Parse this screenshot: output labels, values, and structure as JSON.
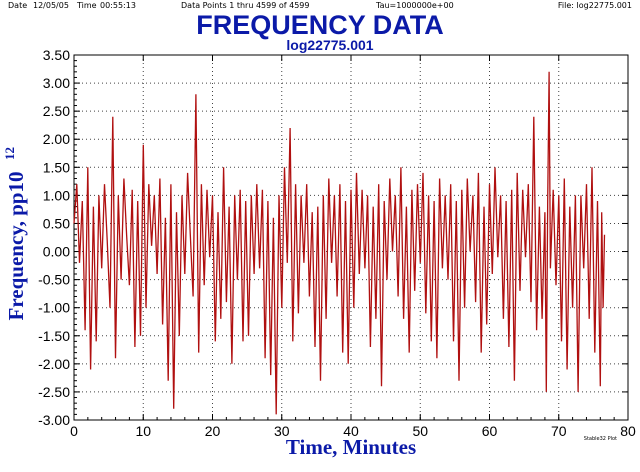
{
  "header": {
    "date_label": "Date",
    "date": "12/05/05",
    "time_label": "Time",
    "time": "00:55:13",
    "points": "Data Points 1 thru 4599 of 4599",
    "tau": "Tau=1000000e+00",
    "file": "File: log22775.001"
  },
  "credit": "Stable32 Plot",
  "chart_data": {
    "type": "line",
    "title": "FREQUENCY DATA",
    "subtitle": "log22775.001",
    "xlabel": "Time, Minutes",
    "ylabel_main": "Frequency,  pp10",
    "ylabel_sup": "12",
    "xlim": [
      0,
      80
    ],
    "ylim": [
      -3.0,
      3.5
    ],
    "x_ticks": [
      "0",
      "10",
      "20",
      "30",
      "40",
      "50",
      "60",
      "70",
      "80"
    ],
    "y_ticks": [
      "3.50",
      "3.00",
      "2.50",
      "2.00",
      "1.50",
      "1.00",
      "0.50",
      "0.00",
      "-0.50",
      "-1.00",
      "-1.50",
      "-2.00",
      "-2.50",
      "-3.00"
    ],
    "grid": true,
    "line_color": "#b01010",
    "series": [
      {
        "values": [
          [
            0.0,
            0.5
          ],
          [
            0.4,
            1.2
          ],
          [
            0.8,
            -0.2
          ],
          [
            1.2,
            0.9
          ],
          [
            1.6,
            -1.4
          ],
          [
            2.0,
            1.5
          ],
          [
            2.4,
            -2.1
          ],
          [
            2.8,
            0.8
          ],
          [
            3.2,
            -1.6
          ],
          [
            3.6,
            1.0
          ],
          [
            4.0,
            -0.3
          ],
          [
            4.4,
            1.2
          ],
          [
            4.8,
            0.2
          ],
          [
            5.2,
            -1.0
          ],
          [
            5.6,
            2.4
          ],
          [
            6.0,
            -1.9
          ],
          [
            6.4,
            1.0
          ],
          [
            6.8,
            -0.5
          ],
          [
            7.2,
            1.3
          ],
          [
            7.6,
            0.3
          ],
          [
            8.0,
            -0.6
          ],
          [
            8.4,
            1.1
          ],
          [
            8.8,
            -1.7
          ],
          [
            9.2,
            0.9
          ],
          [
            9.6,
            -1.5
          ],
          [
            10.0,
            1.9
          ],
          [
            10.4,
            -1.0
          ],
          [
            10.8,
            1.2
          ],
          [
            11.2,
            0.1
          ],
          [
            11.6,
            1.0
          ],
          [
            12.0,
            -0.4
          ],
          [
            12.4,
            1.3
          ],
          [
            12.8,
            -1.3
          ],
          [
            13.2,
            0.6
          ],
          [
            13.6,
            -2.3
          ],
          [
            14.0,
            1.2
          ],
          [
            14.4,
            -2.8
          ],
          [
            14.8,
            0.7
          ],
          [
            15.2,
            -1.5
          ],
          [
            15.6,
            1.0
          ],
          [
            16.0,
            -0.4
          ],
          [
            16.4,
            1.4
          ],
          [
            16.8,
            0.3
          ],
          [
            17.2,
            -0.8
          ],
          [
            17.6,
            2.8
          ],
          [
            18.0,
            -1.8
          ],
          [
            18.4,
            1.2
          ],
          [
            18.8,
            -0.6
          ],
          [
            19.2,
            1.1
          ],
          [
            19.6,
            -0.1
          ],
          [
            20.0,
            1.0
          ],
          [
            20.4,
            -1.6
          ],
          [
            20.8,
            0.7
          ],
          [
            21.2,
            -1.2
          ],
          [
            21.6,
            1.5
          ],
          [
            22.0,
            -0.9
          ],
          [
            22.4,
            0.8
          ],
          [
            22.8,
            -2.0
          ],
          [
            23.2,
            1.0
          ],
          [
            23.6,
            -0.5
          ],
          [
            24.0,
            1.1
          ],
          [
            24.4,
            -1.6
          ],
          [
            24.8,
            0.9
          ],
          [
            25.2,
            -1.5
          ],
          [
            25.6,
            1.0
          ],
          [
            26.0,
            -0.4
          ],
          [
            26.4,
            1.2
          ],
          [
            26.8,
            -0.3
          ],
          [
            27.2,
            1.1
          ],
          [
            27.6,
            -1.9
          ],
          [
            28.0,
            0.9
          ],
          [
            28.4,
            -2.2
          ],
          [
            28.8,
            0.6
          ],
          [
            29.2,
            -2.9
          ],
          [
            29.6,
            1.0
          ],
          [
            30.0,
            -1.0
          ],
          [
            30.4,
            1.5
          ],
          [
            30.8,
            -0.2
          ],
          [
            31.2,
            2.2
          ],
          [
            31.6,
            -1.6
          ],
          [
            32.0,
            1.2
          ],
          [
            32.4,
            -1.1
          ],
          [
            32.8,
            1.0
          ],
          [
            33.2,
            -0.2
          ],
          [
            33.6,
            1.2
          ],
          [
            34.0,
            -0.8
          ],
          [
            34.4,
            0.7
          ],
          [
            34.8,
            -1.7
          ],
          [
            35.2,
            0.8
          ],
          [
            35.6,
            -2.3
          ],
          [
            36.0,
            1.0
          ],
          [
            36.4,
            -1.2
          ],
          [
            36.8,
            1.3
          ],
          [
            37.2,
            -0.2
          ],
          [
            37.6,
            1.0
          ],
          [
            38.0,
            -0.8
          ],
          [
            38.4,
            1.2
          ],
          [
            38.8,
            -1.8
          ],
          [
            39.2,
            0.9
          ],
          [
            39.6,
            -2.0
          ],
          [
            40.0,
            1.1
          ],
          [
            40.4,
            -1.0
          ],
          [
            40.8,
            1.4
          ],
          [
            41.2,
            -0.4
          ],
          [
            41.6,
            1.1
          ],
          [
            42.0,
            -0.3
          ],
          [
            42.4,
            1.0
          ],
          [
            42.8,
            -1.7
          ],
          [
            43.2,
            0.8
          ],
          [
            43.6,
            -1.2
          ],
          [
            44.0,
            1.2
          ],
          [
            44.4,
            -2.4
          ],
          [
            44.8,
            0.9
          ],
          [
            45.2,
            -0.5
          ],
          [
            45.6,
            1.3
          ],
          [
            46.0,
            0.0
          ],
          [
            46.4,
            1.0
          ],
          [
            46.8,
            -0.8
          ],
          [
            47.2,
            1.5
          ],
          [
            47.6,
            -1.2
          ],
          [
            48.0,
            0.8
          ],
          [
            48.4,
            -1.8
          ],
          [
            48.8,
            1.1
          ],
          [
            49.2,
            -0.7
          ],
          [
            49.6,
            1.2
          ],
          [
            50.0,
            -0.2
          ],
          [
            50.4,
            1.4
          ],
          [
            50.8,
            -1.1
          ],
          [
            51.2,
            1.0
          ],
          [
            51.6,
            -1.6
          ],
          [
            52.0,
            0.9
          ],
          [
            52.4,
            -1.9
          ],
          [
            52.8,
            1.3
          ],
          [
            53.2,
            -0.3
          ],
          [
            53.6,
            1.0
          ],
          [
            54.0,
            -0.5
          ],
          [
            54.4,
            1.2
          ],
          [
            54.8,
            -1.6
          ],
          [
            55.2,
            0.9
          ],
          [
            55.6,
            -2.3
          ],
          [
            56.0,
            1.1
          ],
          [
            56.4,
            -1.0
          ],
          [
            56.8,
            1.3
          ],
          [
            57.2,
            0.0
          ],
          [
            57.6,
            1.0
          ],
          [
            58.0,
            -0.9
          ],
          [
            58.4,
            1.4
          ],
          [
            58.8,
            -1.8
          ],
          [
            59.2,
            0.8
          ],
          [
            59.6,
            -1.3
          ],
          [
            60.0,
            1.2
          ],
          [
            60.4,
            -0.4
          ],
          [
            60.8,
            1.5
          ],
          [
            61.2,
            -0.1
          ],
          [
            61.6,
            1.0
          ],
          [
            62.0,
            -1.2
          ],
          [
            62.4,
            0.9
          ],
          [
            62.8,
            -1.7
          ],
          [
            63.2,
            1.1
          ],
          [
            63.6,
            -2.3
          ],
          [
            64.0,
            1.4
          ],
          [
            64.4,
            -0.7
          ],
          [
            64.8,
            1.1
          ],
          [
            65.2,
            -0.1
          ],
          [
            65.6,
            1.2
          ],
          [
            66.0,
            -0.9
          ],
          [
            66.4,
            2.4
          ],
          [
            66.8,
            -1.4
          ],
          [
            67.2,
            0.8
          ],
          [
            67.6,
            -1.2
          ],
          [
            68.0,
            0.7
          ],
          [
            68.2,
            -2.5
          ],
          [
            68.4,
            0.9
          ],
          [
            68.6,
            3.2
          ],
          [
            68.8,
            -0.3
          ],
          [
            69.2,
            1.1
          ],
          [
            69.6,
            -0.6
          ],
          [
            70.0,
            1.0
          ],
          [
            70.4,
            -1.6
          ],
          [
            70.8,
            1.3
          ],
          [
            71.2,
            -2.1
          ],
          [
            71.6,
            0.8
          ],
          [
            72.0,
            -1.0
          ],
          [
            72.4,
            1.0
          ],
          [
            72.8,
            -2.5
          ],
          [
            73.2,
            1.0
          ],
          [
            73.6,
            -0.3
          ],
          [
            74.0,
            1.2
          ],
          [
            74.4,
            -1.2
          ],
          [
            74.8,
            1.5
          ],
          [
            75.2,
            -1.8
          ],
          [
            75.6,
            0.9
          ],
          [
            76.0,
            -2.4
          ],
          [
            76.2,
            0.7
          ],
          [
            76.4,
            -1.0
          ],
          [
            76.6,
            0.3
          ]
        ]
      }
    ]
  }
}
